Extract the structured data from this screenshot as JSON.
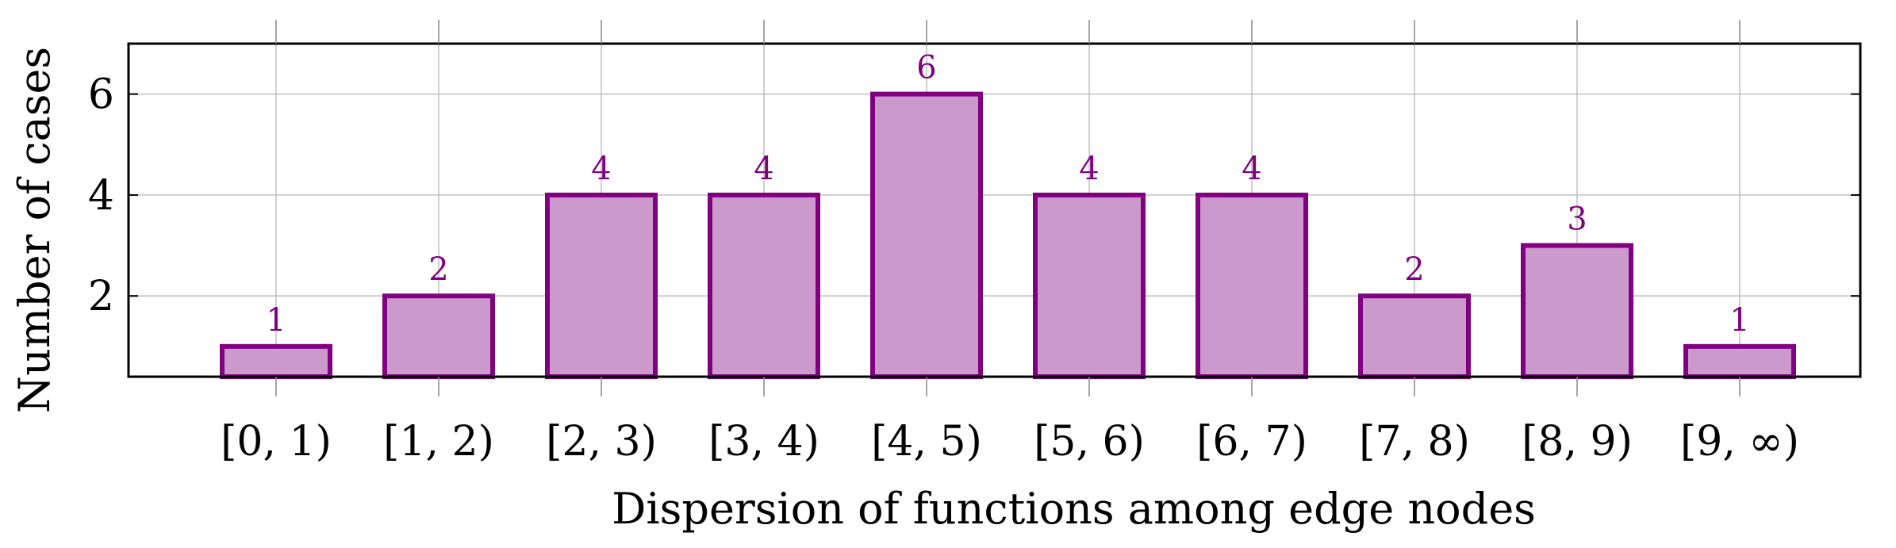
{
  "chart_data": {
    "type": "bar",
    "categories": [
      "[0, 1)",
      "[1, 2)",
      "[2, 3)",
      "[3, 4)",
      "[4, 5)",
      "[5, 6)",
      "[6, 7)",
      "[7, 8)",
      "[8, 9)",
      "[9, ∞)"
    ],
    "values": [
      1,
      2,
      4,
      4,
      6,
      4,
      4,
      2,
      3,
      1
    ],
    "data_labels": [
      "1",
      "2",
      "4",
      "4",
      "6",
      "4",
      "4",
      "2",
      "3",
      "1"
    ],
    "xlabel": "Dispersion of functions among edge nodes",
    "ylabel": "Number of cases",
    "ylim": [
      0.4,
      7
    ],
    "yticks": [
      2,
      4,
      6
    ],
    "ytick_labels": [
      "2",
      "4",
      "6"
    ],
    "grid": "both",
    "colors": {
      "bar_fill": "#cc99cc",
      "bar_stroke": "#800080",
      "label": "#800080",
      "grid": "#bfbfbf",
      "axis": "#000000"
    }
  }
}
